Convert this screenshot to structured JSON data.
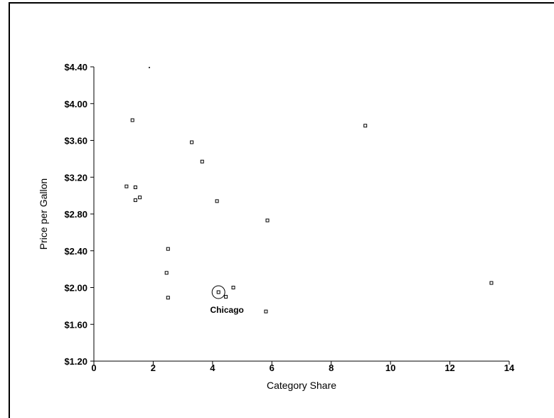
{
  "chart_data": {
    "type": "scatter",
    "title": "",
    "xlabel": "Category Share",
    "ylabel": "Price per Gallon",
    "xlim": [
      0,
      14
    ],
    "ylim": [
      1.2,
      4.4
    ],
    "x_ticks": [
      "0",
      "2",
      "4",
      "6",
      "8",
      "10",
      "12",
      "14"
    ],
    "y_ticks": [
      "$1.20",
      "$1.60",
      "$2.00",
      "$2.40",
      "$2.80",
      "$3.20",
      "$3.60",
      "$4.00",
      "$4.40"
    ],
    "grid": false,
    "points": [
      {
        "x": 1.3,
        "y": 3.82
      },
      {
        "x": 1.1,
        "y": 3.1
      },
      {
        "x": 1.4,
        "y": 3.09
      },
      {
        "x": 1.4,
        "y": 2.95
      },
      {
        "x": 1.55,
        "y": 2.98
      },
      {
        "x": 3.3,
        "y": 3.58
      },
      {
        "x": 3.65,
        "y": 3.37
      },
      {
        "x": 4.15,
        "y": 2.94
      },
      {
        "x": 5.85,
        "y": 2.73
      },
      {
        "x": 9.15,
        "y": 3.76
      },
      {
        "x": 2.5,
        "y": 2.42
      },
      {
        "x": 2.45,
        "y": 2.16
      },
      {
        "x": 2.5,
        "y": 1.89
      },
      {
        "x": 4.45,
        "y": 1.9
      },
      {
        "x": 4.7,
        "y": 2.0
      },
      {
        "x": 5.8,
        "y": 1.74
      },
      {
        "x": 13.4,
        "y": 2.05
      },
      {
        "x": 4.2,
        "y": 1.95,
        "label": "Chicago",
        "highlight": true
      }
    ],
    "annotation": "Chicago"
  }
}
